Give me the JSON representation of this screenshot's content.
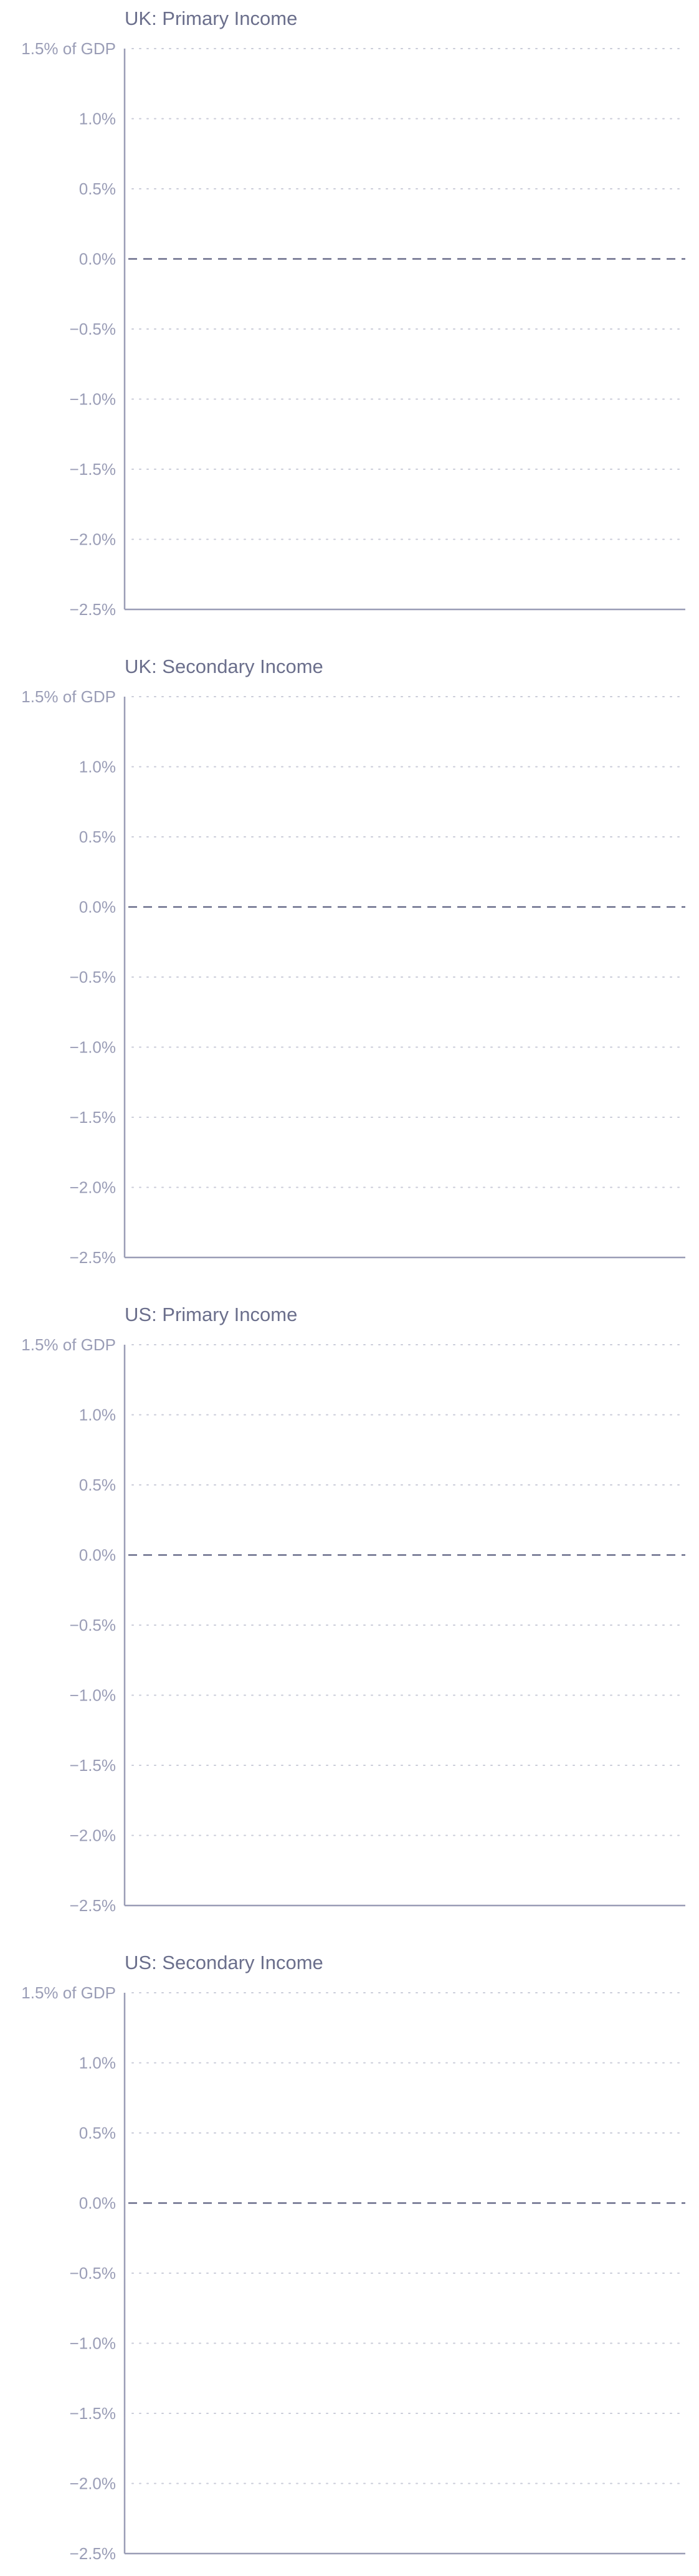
{
  "chart_data": [
    {
      "type": "line",
      "title": "UK: Primary Income",
      "xlabel": "",
      "ylabel": "",
      "ylim": [
        -2.5,
        1.5
      ],
      "y_ticks": [
        1.5,
        1.0,
        0.5,
        0.0,
        -0.5,
        -1.0,
        -1.5,
        -2.0,
        -2.5
      ],
      "y_tick_labels": [
        "1.5% of GDP",
        "1.0%",
        "0.5%",
        "0.0%",
        "−0.5%",
        "−1.0%",
        "−1.5%",
        "−2.0%",
        "−2.5%"
      ],
      "grid": true,
      "reference_line": 0.0,
      "series": []
    },
    {
      "type": "line",
      "title": "UK: Secondary Income",
      "xlabel": "",
      "ylabel": "",
      "ylim": [
        -2.5,
        1.5
      ],
      "y_ticks": [
        1.5,
        1.0,
        0.5,
        0.0,
        -0.5,
        -1.0,
        -1.5,
        -2.0,
        -2.5
      ],
      "y_tick_labels": [
        "1.5% of GDP",
        "1.0%",
        "0.5%",
        "0.0%",
        "−0.5%",
        "−1.0%",
        "−1.5%",
        "−2.0%",
        "−2.5%"
      ],
      "grid": true,
      "reference_line": 0.0,
      "series": []
    },
    {
      "type": "line",
      "title": "US: Primary Income",
      "xlabel": "",
      "ylabel": "",
      "ylim": [
        -2.5,
        1.5
      ],
      "y_ticks": [
        1.5,
        1.0,
        0.5,
        0.0,
        -0.5,
        -1.0,
        -1.5,
        -2.0,
        -2.5
      ],
      "y_tick_labels": [
        "1.5% of GDP",
        "1.0%",
        "0.5%",
        "0.0%",
        "−0.5%",
        "−1.0%",
        "−1.5%",
        "−2.0%",
        "−2.5%"
      ],
      "grid": true,
      "reference_line": 0.0,
      "series": []
    },
    {
      "type": "line",
      "title": "US: Secondary Income",
      "xlabel": "",
      "ylabel": "",
      "ylim": [
        -2.5,
        1.5
      ],
      "y_ticks": [
        1.5,
        1.0,
        0.5,
        0.0,
        -0.5,
        -1.0,
        -1.5,
        -2.0,
        -2.5
      ],
      "y_tick_labels": [
        "1.5% of GDP",
        "1.0%",
        "0.5%",
        "0.0%",
        "−0.5%",
        "−1.0%",
        "−1.5%",
        "−2.0%",
        "−2.5%"
      ],
      "grid": true,
      "reference_line": 0.0,
      "series": []
    }
  ],
  "colors": {
    "title": "#6b6f8c",
    "tick_label": "#9a9db6",
    "grid": "#c9cbd8",
    "zero_line": "#6b6f8c",
    "axis": "#9a9db6"
  }
}
